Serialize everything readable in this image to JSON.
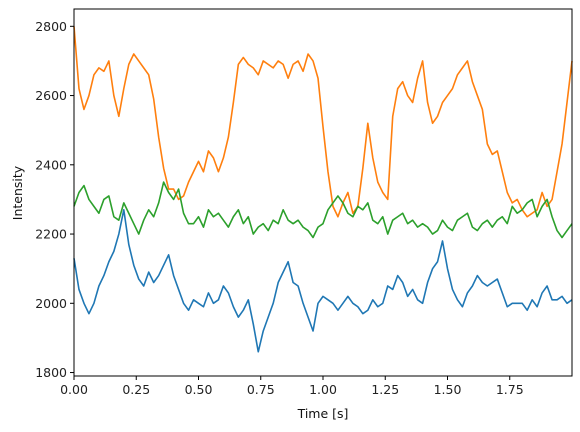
{
  "chart_data": {
    "type": "line",
    "title": "",
    "xlabel": "Time [s]",
    "ylabel": "Intensity",
    "xlim": [
      0.0,
      2.0
    ],
    "ylim": [
      1790,
      2850
    ],
    "xticks": [
      0.0,
      0.25,
      0.5,
      0.75,
      1.0,
      1.25,
      1.5,
      1.75
    ],
    "xtick_labels": [
      "0.00",
      "0.25",
      "0.50",
      "0.75",
      "1.00",
      "1.25",
      "1.50",
      "1.75"
    ],
    "yticks": [
      1800,
      2000,
      2200,
      2400,
      2600,
      2800
    ],
    "ytick_labels": [
      "1800",
      "2000",
      "2200",
      "2400",
      "2600",
      "2800"
    ],
    "grid": false,
    "legend": "none",
    "series": [
      {
        "color": "#1f77b4",
        "x": [
          0.0,
          0.02,
          0.04,
          0.06,
          0.08,
          0.1,
          0.12,
          0.14,
          0.16,
          0.18,
          0.2,
          0.22,
          0.24,
          0.26,
          0.28,
          0.3,
          0.32,
          0.34,
          0.36,
          0.38,
          0.4,
          0.42,
          0.44,
          0.46,
          0.48,
          0.5,
          0.52,
          0.54,
          0.56,
          0.58,
          0.6,
          0.62,
          0.64,
          0.66,
          0.68,
          0.7,
          0.72,
          0.74,
          0.76,
          0.78,
          0.8,
          0.82,
          0.84,
          0.86,
          0.88,
          0.9,
          0.92,
          0.94,
          0.96,
          0.98,
          1.0,
          1.02,
          1.04,
          1.06,
          1.08,
          1.1,
          1.12,
          1.14,
          1.16,
          1.18,
          1.2,
          1.22,
          1.24,
          1.26,
          1.28,
          1.3,
          1.32,
          1.34,
          1.36,
          1.38,
          1.4,
          1.42,
          1.44,
          1.46,
          1.48,
          1.5,
          1.52,
          1.54,
          1.56,
          1.58,
          1.6,
          1.62,
          1.64,
          1.66,
          1.68,
          1.7,
          1.72,
          1.74,
          1.76,
          1.78,
          1.8,
          1.82,
          1.84,
          1.86,
          1.88,
          1.9,
          1.92,
          1.94,
          1.96,
          1.98,
          2.0
        ],
        "y": [
          2130,
          2040,
          2000,
          1970,
          2000,
          2050,
          2080,
          2120,
          2150,
          2200,
          2270,
          2170,
          2110,
          2070,
          2050,
          2090,
          2060,
          2080,
          2110,
          2140,
          2080,
          2040,
          2000,
          1980,
          2010,
          2000,
          1990,
          2030,
          2000,
          2010,
          2050,
          2030,
          1990,
          1960,
          1980,
          2010,
          1940,
          1860,
          1920,
          1960,
          2000,
          2060,
          2090,
          2120,
          2060,
          2050,
          2000,
          1960,
          1920,
          2000,
          2020,
          2010,
          2000,
          1980,
          2000,
          2020,
          2000,
          1990,
          1970,
          1980,
          2010,
          1990,
          2000,
          2050,
          2040,
          2080,
          2060,
          2020,
          2040,
          2010,
          2000,
          2060,
          2100,
          2120,
          2180,
          2100,
          2040,
          2010,
          1990,
          2030,
          2050,
          2080,
          2060,
          2050,
          2060,
          2070,
          2030,
          1990,
          2000,
          2000,
          2000,
          1980,
          2010,
          1990,
          2030,
          2050,
          2010,
          2010,
          2020,
          2000,
          2010
        ]
      },
      {
        "color": "#ff7f0e",
        "x": [
          0.0,
          0.02,
          0.04,
          0.06,
          0.08,
          0.1,
          0.12,
          0.14,
          0.16,
          0.18,
          0.2,
          0.22,
          0.24,
          0.26,
          0.28,
          0.3,
          0.32,
          0.34,
          0.36,
          0.38,
          0.4,
          0.42,
          0.44,
          0.46,
          0.48,
          0.5,
          0.52,
          0.54,
          0.56,
          0.58,
          0.6,
          0.62,
          0.64,
          0.66,
          0.68,
          0.7,
          0.72,
          0.74,
          0.76,
          0.78,
          0.8,
          0.82,
          0.84,
          0.86,
          0.88,
          0.9,
          0.92,
          0.94,
          0.96,
          0.98,
          1.0,
          1.02,
          1.04,
          1.06,
          1.08,
          1.1,
          1.12,
          1.14,
          1.16,
          1.18,
          1.2,
          1.22,
          1.24,
          1.26,
          1.28,
          1.3,
          1.32,
          1.34,
          1.36,
          1.38,
          1.4,
          1.42,
          1.44,
          1.46,
          1.48,
          1.5,
          1.52,
          1.54,
          1.56,
          1.58,
          1.6,
          1.62,
          1.64,
          1.66,
          1.68,
          1.7,
          1.72,
          1.74,
          1.76,
          1.78,
          1.8,
          1.82,
          1.84,
          1.86,
          1.88,
          1.9,
          1.92,
          1.94,
          1.96,
          1.98,
          2.0
        ],
        "y": [
          2800,
          2620,
          2560,
          2600,
          2660,
          2680,
          2670,
          2700,
          2600,
          2540,
          2620,
          2690,
          2720,
          2700,
          2680,
          2660,
          2590,
          2480,
          2390,
          2330,
          2330,
          2300,
          2310,
          2350,
          2380,
          2410,
          2380,
          2440,
          2420,
          2380,
          2420,
          2480,
          2580,
          2690,
          2710,
          2690,
          2680,
          2660,
          2700,
          2690,
          2680,
          2700,
          2690,
          2650,
          2690,
          2700,
          2670,
          2720,
          2700,
          2650,
          2510,
          2380,
          2280,
          2250,
          2290,
          2320,
          2260,
          2280,
          2390,
          2520,
          2420,
          2350,
          2320,
          2300,
          2540,
          2620,
          2640,
          2600,
          2580,
          2650,
          2700,
          2580,
          2520,
          2540,
          2580,
          2600,
          2620,
          2660,
          2680,
          2700,
          2640,
          2600,
          2560,
          2460,
          2430,
          2440,
          2380,
          2320,
          2290,
          2300,
          2270,
          2250,
          2260,
          2270,
          2320,
          2280,
          2300,
          2380,
          2460,
          2580,
          2700
        ]
      },
      {
        "color": "#2ca02c",
        "x": [
          0.0,
          0.02,
          0.04,
          0.06,
          0.08,
          0.1,
          0.12,
          0.14,
          0.16,
          0.18,
          0.2,
          0.22,
          0.24,
          0.26,
          0.28,
          0.3,
          0.32,
          0.34,
          0.36,
          0.38,
          0.4,
          0.42,
          0.44,
          0.46,
          0.48,
          0.5,
          0.52,
          0.54,
          0.56,
          0.58,
          0.6,
          0.62,
          0.64,
          0.66,
          0.68,
          0.7,
          0.72,
          0.74,
          0.76,
          0.78,
          0.8,
          0.82,
          0.84,
          0.86,
          0.88,
          0.9,
          0.92,
          0.94,
          0.96,
          0.98,
          1.0,
          1.02,
          1.04,
          1.06,
          1.08,
          1.1,
          1.12,
          1.14,
          1.16,
          1.18,
          1.2,
          1.22,
          1.24,
          1.26,
          1.28,
          1.3,
          1.32,
          1.34,
          1.36,
          1.38,
          1.4,
          1.42,
          1.44,
          1.46,
          1.48,
          1.5,
          1.52,
          1.54,
          1.56,
          1.58,
          1.6,
          1.62,
          1.64,
          1.66,
          1.68,
          1.7,
          1.72,
          1.74,
          1.76,
          1.78,
          1.8,
          1.82,
          1.84,
          1.86,
          1.88,
          1.9,
          1.92,
          1.94,
          1.96,
          1.98,
          2.0
        ],
        "y": [
          2280,
          2320,
          2340,
          2300,
          2280,
          2260,
          2300,
          2310,
          2250,
          2240,
          2290,
          2260,
          2230,
          2200,
          2240,
          2270,
          2250,
          2290,
          2350,
          2320,
          2300,
          2330,
          2260,
          2230,
          2230,
          2250,
          2220,
          2270,
          2250,
          2260,
          2240,
          2220,
          2250,
          2270,
          2230,
          2250,
          2200,
          2220,
          2230,
          2210,
          2240,
          2230,
          2270,
          2240,
          2230,
          2240,
          2220,
          2210,
          2190,
          2220,
          2230,
          2270,
          2290,
          2310,
          2290,
          2260,
          2250,
          2280,
          2270,
          2290,
          2240,
          2230,
          2250,
          2200,
          2240,
          2250,
          2260,
          2230,
          2240,
          2220,
          2230,
          2220,
          2200,
          2210,
          2240,
          2220,
          2210,
          2240,
          2250,
          2260,
          2220,
          2210,
          2230,
          2240,
          2220,
          2240,
          2250,
          2230,
          2280,
          2260,
          2270,
          2290,
          2300,
          2250,
          2280,
          2300,
          2250,
          2210,
          2190,
          2210,
          2230
        ]
      }
    ]
  }
}
